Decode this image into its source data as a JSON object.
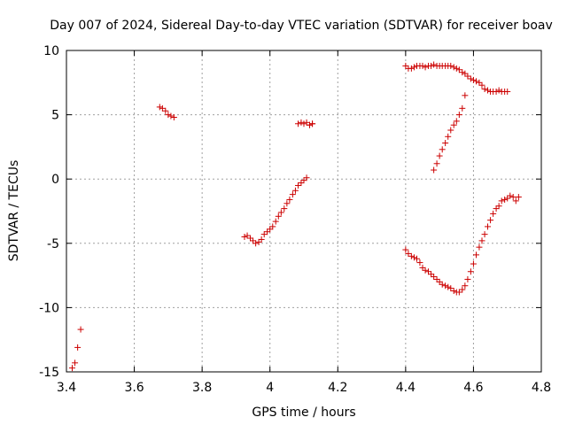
{
  "chart_data": {
    "type": "scatter",
    "title": "Day 007 of 2024, Sidereal Day-to-day VTEC variation (SDTVAR) for receiver boav",
    "xlabel": "GPS time / hours",
    "ylabel": "SDTVAR / TECUs",
    "xlim": [
      3.4,
      4.8
    ],
    "ylim": [
      -15,
      10
    ],
    "xticks": [
      3.4,
      3.6,
      3.8,
      4.0,
      4.2,
      4.4,
      4.6,
      4.8
    ],
    "xtick_labels": [
      "3.4",
      "3.6",
      "3.8",
      "4",
      "4.2",
      "4.4",
      "4.6",
      "4.8"
    ],
    "yticks": [
      -15,
      -10,
      -5,
      0,
      5,
      10
    ],
    "ytick_labels": [
      "-15",
      "-10",
      "-5",
      "0",
      "5",
      "10"
    ],
    "grid": true,
    "marker": "+",
    "color": "#cc0000",
    "series": [
      {
        "name": "SDTVAR",
        "x": [
          3.417,
          3.425,
          3.433,
          3.442,
          3.675,
          3.683,
          3.692,
          3.7,
          3.708,
          3.717,
          3.925,
          3.933,
          3.942,
          3.95,
          3.958,
          3.967,
          3.975,
          3.983,
          3.992,
          4.0,
          4.008,
          4.017,
          4.025,
          4.033,
          4.042,
          4.05,
          4.058,
          4.067,
          4.075,
          4.083,
          4.092,
          4.1,
          4.108,
          4.117,
          4.125,
          4.083,
          4.092,
          4.1,
          4.108,
          4.117,
          4.125,
          4.4,
          4.408,
          4.417,
          4.425,
          4.433,
          4.442,
          4.45,
          4.458,
          4.467,
          4.475,
          4.483,
          4.492,
          4.5,
          4.508,
          4.517,
          4.525,
          4.533,
          4.542,
          4.55,
          4.558,
          4.567,
          4.575,
          4.583,
          4.592,
          4.6,
          4.608,
          4.617,
          4.625,
          4.633,
          4.642,
          4.65,
          4.658,
          4.667,
          4.675,
          4.683,
          4.692,
          4.7,
          4.708,
          4.717,
          4.725,
          4.733,
          4.483,
          4.492,
          4.5,
          4.508,
          4.517,
          4.525,
          4.533,
          4.542,
          4.55,
          4.558,
          4.567,
          4.575,
          4.4,
          4.408,
          4.417,
          4.425,
          4.433,
          4.442,
          4.45,
          4.458,
          4.467,
          4.475,
          4.483,
          4.492,
          4.5,
          4.508,
          4.517,
          4.525,
          4.533,
          4.542,
          4.55,
          4.558,
          4.567,
          4.575,
          4.583,
          4.592,
          4.6,
          4.608,
          4.617,
          4.625,
          4.633,
          4.642,
          4.65,
          4.658,
          4.667,
          4.675,
          4.683,
          4.692,
          4.7
        ],
        "y": [
          -14.7,
          -14.3,
          -13.1,
          -11.7,
          5.6,
          5.5,
          5.3,
          5.0,
          4.9,
          4.8,
          -4.5,
          -4.4,
          -4.6,
          -4.8,
          -5.0,
          -4.9,
          -4.7,
          -4.3,
          -4.1,
          -3.9,
          -3.7,
          -3.3,
          -2.9,
          -2.6,
          -2.3,
          -1.9,
          -1.6,
          -1.2,
          -0.9,
          -0.5,
          -0.3,
          -0.1,
          0.1,
          4.2,
          4.3,
          4.3,
          4.4,
          4.3,
          4.4,
          4.2,
          4.3,
          -5.5,
          -5.8,
          -6.0,
          -6.1,
          -6.2,
          -6.5,
          -6.9,
          -7.1,
          -7.2,
          -7.4,
          -7.6,
          -7.8,
          -8.0,
          -8.2,
          -8.3,
          -8.4,
          -8.5,
          -8.7,
          -8.8,
          -8.8,
          -8.6,
          -8.3,
          -7.8,
          -7.2,
          -6.6,
          -5.9,
          -5.3,
          -4.8,
          -4.3,
          -3.7,
          -3.2,
          -2.7,
          -2.3,
          -2.1,
          -1.7,
          -1.6,
          -1.5,
          -1.3,
          -1.4,
          -1.7,
          -1.4,
          0.7,
          1.2,
          1.8,
          2.3,
          2.8,
          3.3,
          3.8,
          4.2,
          4.5,
          5.0,
          5.5,
          6.5,
          8.8,
          8.6,
          8.6,
          8.7,
          8.8,
          8.8,
          8.8,
          8.7,
          8.8,
          8.8,
          8.9,
          8.8,
          8.8,
          8.8,
          8.8,
          8.8,
          8.8,
          8.7,
          8.6,
          8.5,
          8.3,
          8.2,
          8.0,
          7.8,
          7.7,
          7.6,
          7.5,
          7.3,
          7.0,
          6.9,
          6.8,
          6.8,
          6.8,
          6.9,
          6.8,
          6.8,
          6.8
        ]
      }
    ]
  }
}
